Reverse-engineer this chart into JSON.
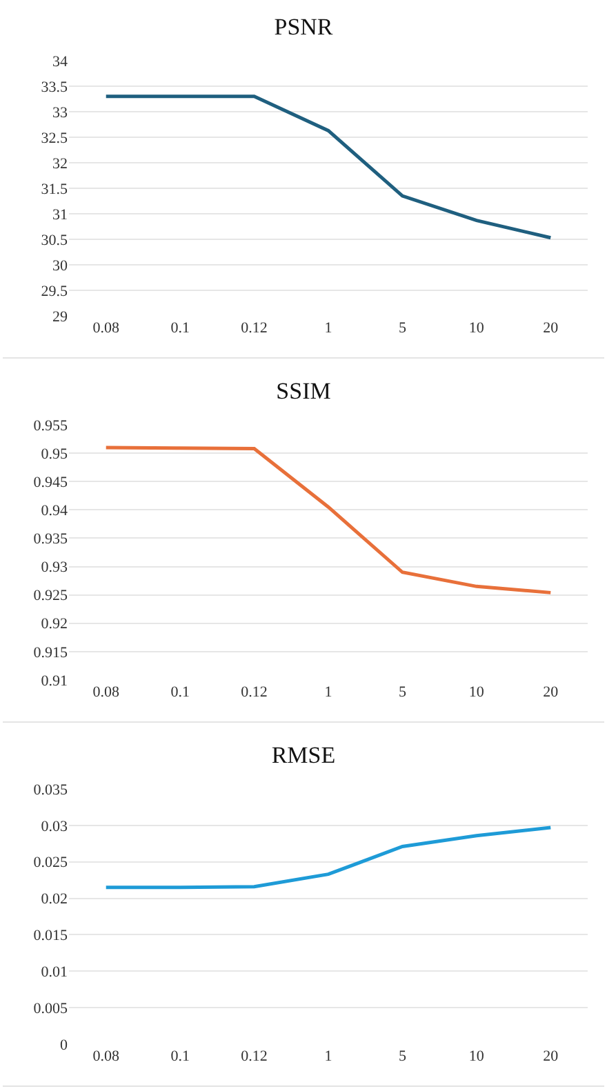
{
  "chart_data": [
    {
      "type": "line",
      "title": "PSNR",
      "categories": [
        "0.08",
        "0.1",
        "0.12",
        "1",
        "5",
        "10",
        "20"
      ],
      "series": [
        {
          "color": "#1f5f7f",
          "values": [
            33.3,
            33.3,
            33.3,
            32.63,
            31.35,
            30.87,
            30.53
          ]
        }
      ],
      "ylim": [
        29,
        34
      ],
      "yticks": [
        29,
        29.5,
        30,
        30.5,
        31,
        31.5,
        32,
        32.5,
        33,
        33.5,
        34
      ],
      "grid": "y",
      "marker": "none",
      "line_style": "solid"
    },
    {
      "type": "line",
      "title": "SSIM",
      "categories": [
        "0.08",
        "0.1",
        "0.12",
        "1",
        "5",
        "10",
        "20"
      ],
      "series": [
        {
          "color": "#e8703a",
          "values": [
            0.951,
            0.9509,
            0.9508,
            0.9405,
            0.929,
            0.9265,
            0.9254
          ]
        }
      ],
      "ylim": [
        0.91,
        0.955
      ],
      "yticks": [
        0.91,
        0.915,
        0.92,
        0.925,
        0.93,
        0.935,
        0.94,
        0.945,
        0.95,
        0.955
      ],
      "grid": "y",
      "marker": "none",
      "line_style": "solid"
    },
    {
      "type": "line",
      "title": "RMSE",
      "categories": [
        "0.08",
        "0.1",
        "0.12",
        "1",
        "5",
        "10",
        "20"
      ],
      "series": [
        {
          "color": "#1e9bd7",
          "values": [
            0.0215,
            0.0215,
            0.0216,
            0.0233,
            0.0271,
            0.0286,
            0.0297
          ]
        }
      ],
      "ylim": [
        0,
        0.035
      ],
      "yticks": [
        0,
        0.005,
        0.01,
        0.015,
        0.02,
        0.025,
        0.03,
        0.035
      ],
      "grid": "y",
      "marker": "none",
      "line_style": "solid"
    }
  ]
}
